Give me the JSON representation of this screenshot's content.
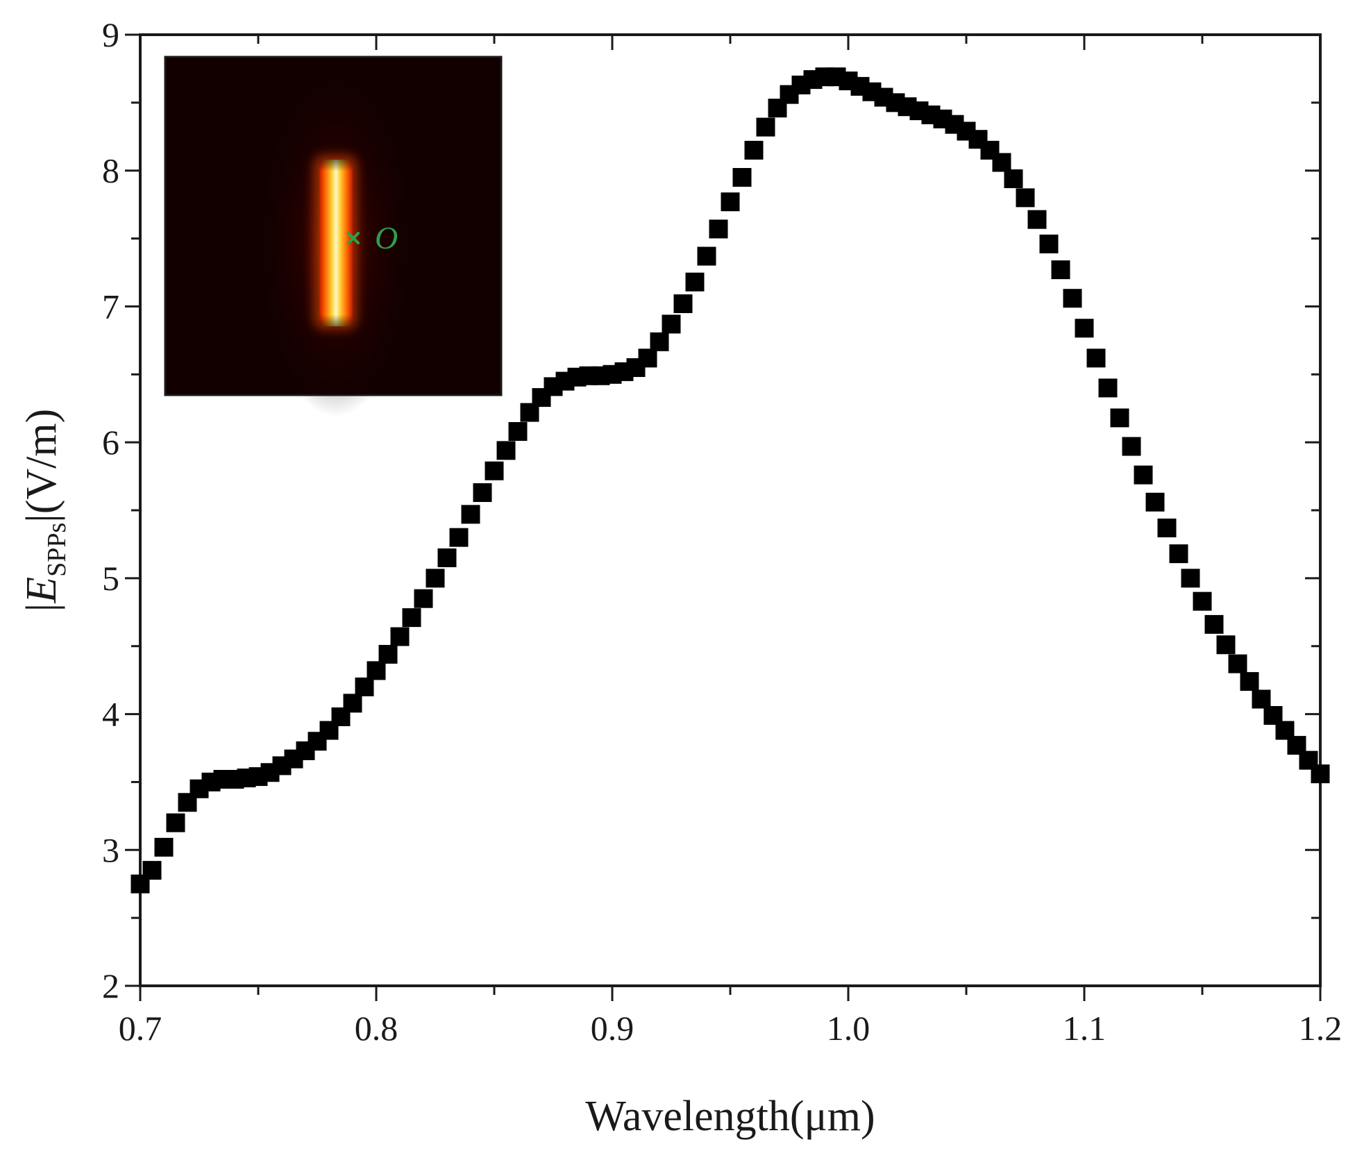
{
  "chart_data": {
    "type": "scatter",
    "title": "",
    "xlabel": "Wavelength(μm)",
    "ylabel": {
      "prefix": "|",
      "symbol": "E",
      "subscript": "SPPs",
      "suffix": "|(V/m)"
    },
    "xlim": [
      0.7,
      1.2
    ],
    "ylim": [
      2,
      9
    ],
    "x_ticks": [
      0.7,
      0.8,
      0.9,
      1.0,
      1.1,
      1.2
    ],
    "x_tick_labels": [
      "0.7",
      "0.8",
      "0.9",
      "1.0",
      "1.1",
      "1.2"
    ],
    "y_ticks": [
      2,
      3,
      4,
      5,
      6,
      7,
      8,
      9
    ],
    "y_tick_labels": [
      "2",
      "3",
      "4",
      "5",
      "6",
      "7",
      "8",
      "9"
    ],
    "marker": "square",
    "marker_color": "#000000",
    "series": [
      {
        "name": "|E_SPPs|",
        "x": [
          0.7,
          0.705,
          0.71,
          0.715,
          0.72,
          0.725,
          0.73,
          0.735,
          0.74,
          0.745,
          0.75,
          0.755,
          0.76,
          0.765,
          0.77,
          0.775,
          0.78,
          0.785,
          0.79,
          0.795,
          0.8,
          0.805,
          0.81,
          0.815,
          0.82,
          0.825,
          0.83,
          0.835,
          0.84,
          0.845,
          0.85,
          0.855,
          0.86,
          0.865,
          0.87,
          0.875,
          0.88,
          0.885,
          0.89,
          0.895,
          0.9,
          0.905,
          0.91,
          0.915,
          0.92,
          0.925,
          0.93,
          0.935,
          0.94,
          0.945,
          0.95,
          0.955,
          0.96,
          0.965,
          0.97,
          0.975,
          0.98,
          0.985,
          0.99,
          0.995,
          1.0,
          1.005,
          1.01,
          1.015,
          1.02,
          1.025,
          1.03,
          1.035,
          1.04,
          1.045,
          1.05,
          1.055,
          1.06,
          1.065,
          1.07,
          1.075,
          1.08,
          1.085,
          1.09,
          1.095,
          1.1,
          1.105,
          1.11,
          1.115,
          1.12,
          1.125,
          1.13,
          1.135,
          1.14,
          1.145,
          1.15,
          1.155,
          1.16,
          1.165,
          1.17,
          1.175,
          1.18,
          1.185,
          1.19,
          1.195,
          1.2
        ],
        "values": [
          2.75,
          2.85,
          3.02,
          3.2,
          3.35,
          3.45,
          3.5,
          3.52,
          3.52,
          3.53,
          3.54,
          3.57,
          3.62,
          3.67,
          3.73,
          3.8,
          3.88,
          3.98,
          4.08,
          4.2,
          4.32,
          4.44,
          4.57,
          4.71,
          4.85,
          5.0,
          5.15,
          5.3,
          5.47,
          5.63,
          5.79,
          5.94,
          6.08,
          6.22,
          6.33,
          6.41,
          6.45,
          6.48,
          6.49,
          6.49,
          6.5,
          6.52,
          6.55,
          6.62,
          6.74,
          6.87,
          7.02,
          7.18,
          7.37,
          7.57,
          7.77,
          7.95,
          8.15,
          8.32,
          8.46,
          8.56,
          8.63,
          8.67,
          8.69,
          8.69,
          8.66,
          8.62,
          8.58,
          8.54,
          8.5,
          8.47,
          8.44,
          8.41,
          8.38,
          8.34,
          8.29,
          8.23,
          8.15,
          8.06,
          7.94,
          7.8,
          7.64,
          7.46,
          7.27,
          7.06,
          6.84,
          6.62,
          6.4,
          6.18,
          5.97,
          5.76,
          5.56,
          5.37,
          5.18,
          5.0,
          4.83,
          4.66,
          4.51,
          4.37,
          4.24,
          4.11,
          3.99,
          3.88,
          3.77,
          3.66,
          3.56
        ]
      }
    ],
    "inset": {
      "type": "heatmap",
      "description_label": "O",
      "label_color": "#2aa24a",
      "colormap": [
        "#000000",
        "#3a0000",
        "#b01000",
        "#ff6a00",
        "#ffd23a",
        "#ffffe0"
      ]
    }
  }
}
